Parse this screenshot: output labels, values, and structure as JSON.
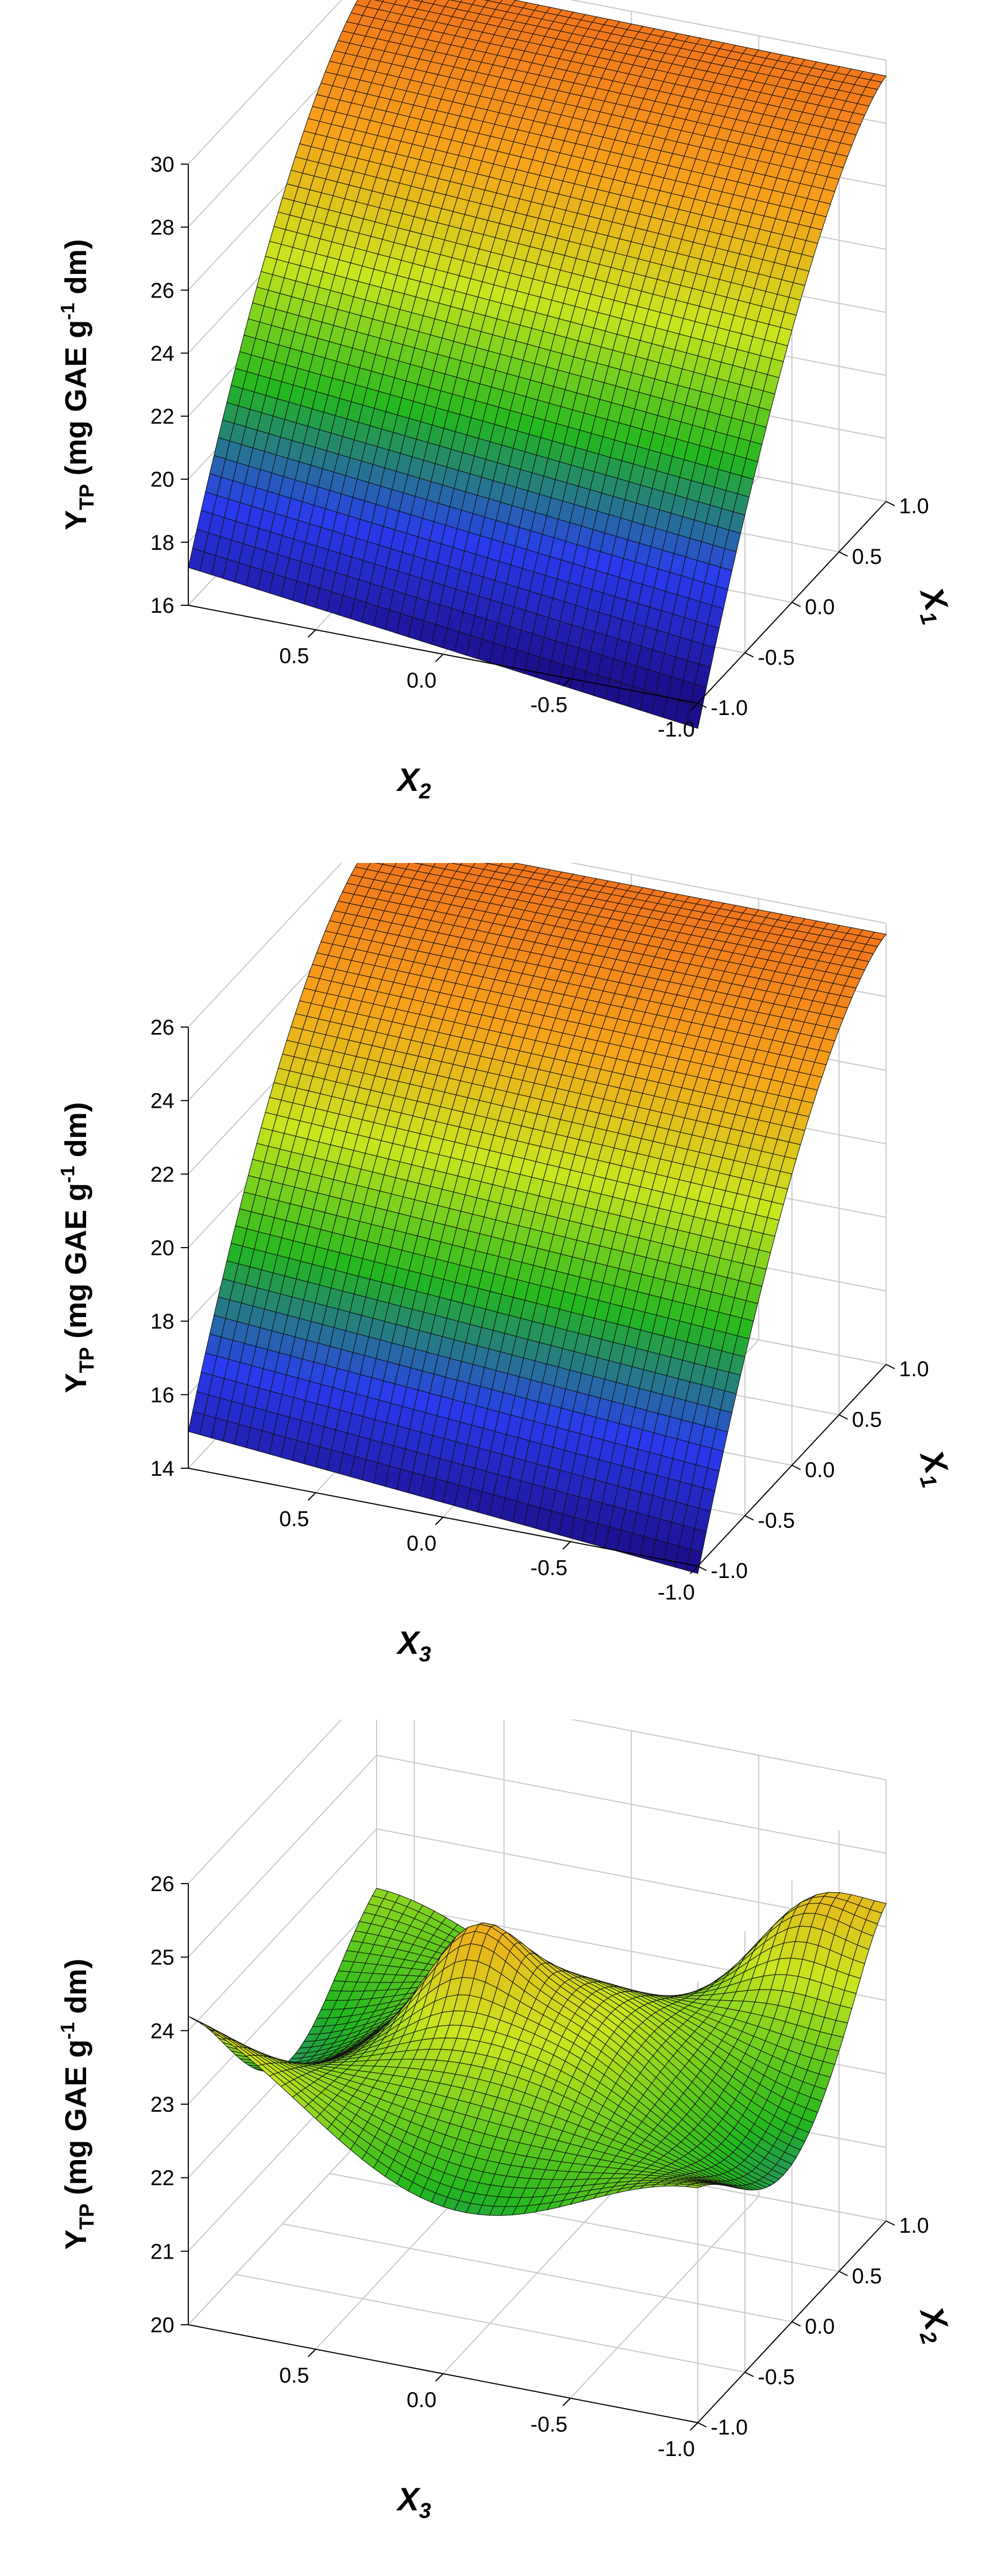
{
  "chart_data": [
    {
      "type": "surface",
      "zlabel": "Y",
      "zlabel_sub": "TP",
      "zlabel_unit_pre": " (mg GAE g",
      "zlabel_unit_sup": "-1",
      "zlabel_unit_post": " dm)",
      "xlabel": "X",
      "xlabel_sub": "2",
      "ylabel": "X",
      "ylabel_sub": "1",
      "zlim": [
        16,
        30
      ],
      "xlim": [
        -1.0,
        1.0
      ],
      "ylim": [
        -1.0,
        1.0
      ],
      "zticks": [
        "16",
        "18",
        "20",
        "22",
        "24",
        "26",
        "28",
        "30"
      ],
      "xticks": [
        "0.5",
        "0.0",
        "-0.5",
        "-1.0"
      ],
      "yticks": [
        "-1.0",
        "-0.5",
        "0.0",
        "0.5",
        "1.0"
      ],
      "grid": true,
      "colormap": [
        "#1c0f8c",
        "#2a3cf0",
        "#22b81e",
        "#c8e61e",
        "#f7a21a",
        "#f2701c"
      ],
      "corner_values": {
        "x_pos_y_neg": 17.3,
        "x_neg_y_neg": 16.0,
        "x_pos_y_pos": 29.0,
        "x_neg_y_pos": 29.9
      }
    },
    {
      "type": "surface",
      "zlabel": "Y",
      "zlabel_sub": "TP",
      "zlabel_unit_pre": " (mg GAE g",
      "zlabel_unit_sup": "-1",
      "zlabel_unit_post": " dm)",
      "xlabel": "X",
      "xlabel_sub": "3",
      "ylabel": "X",
      "ylabel_sub": "1",
      "zlim": [
        14,
        26
      ],
      "xlim": [
        -1.0,
        1.0
      ],
      "ylim": [
        -1.0,
        1.0
      ],
      "zticks": [
        "14",
        "16",
        "18",
        "20",
        "22",
        "24",
        "26"
      ],
      "xticks": [
        "0.5",
        "0.0",
        "-0.5",
        "-1.0"
      ],
      "yticks": [
        "-1.0",
        "-0.5",
        "0.0",
        "0.5",
        "1.0"
      ],
      "grid": true,
      "colormap": [
        "#1c0f8c",
        "#2a3cf0",
        "#22b81e",
        "#c8e61e",
        "#f7a21a",
        "#f2701c"
      ],
      "corner_values": {
        "x_pos_y_neg": 15.0,
        "x_neg_y_neg": 14.0,
        "x_pos_y_pos": 25.6,
        "x_neg_y_pos": 25.8
      }
    },
    {
      "type": "surface",
      "zlabel": "Y",
      "zlabel_sub": "TP",
      "zlabel_unit_pre": " (mg GAE g",
      "zlabel_unit_sup": "-1",
      "zlabel_unit_post": " dm)",
      "xlabel": "X",
      "xlabel_sub": "3",
      "ylabel": "X",
      "ylabel_sub": "2",
      "zlim": [
        20,
        26
      ],
      "xlim": [
        -1.0,
        1.0
      ],
      "ylim": [
        -1.0,
        1.0
      ],
      "zticks": [
        "20",
        "21",
        "22",
        "23",
        "24",
        "25",
        "26"
      ],
      "xticks": [
        "0.5",
        "0.0",
        "-0.5",
        "-1.0"
      ],
      "yticks": [
        "-1.0",
        "-0.5",
        "0.0",
        "0.5",
        "1.0"
      ],
      "grid": true,
      "colormap": [
        "#1c0f8c",
        "#2a3cf0",
        "#22b81e",
        "#c8e61e",
        "#f7a21a",
        "#f2701c"
      ],
      "saddle_description_values": {
        "max_peak": 25.3,
        "min_peak": 23.0,
        "edge": 22.5
      }
    }
  ]
}
